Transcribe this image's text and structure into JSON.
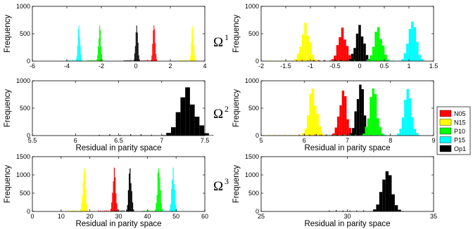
{
  "chart_data": [
    {
      "type": "bar",
      "panel": "top-left",
      "xlabel": "",
      "ylabel": "Frequency",
      "xlim": [
        -6,
        4
      ],
      "ylim": [
        0,
        1000
      ],
      "xticks": [
        "-6",
        "-4",
        "-2",
        "0",
        "2",
        "4"
      ],
      "yticks": [
        "0",
        "500",
        "1000"
      ],
      "peaks": [
        {
          "series": "P15",
          "center": -3.3,
          "height": 650,
          "width": 0.04
        },
        {
          "series": "P10",
          "center": -2.1,
          "height": 650,
          "width": 0.04
        },
        {
          "series": "Op1",
          "center": 0.05,
          "height": 650,
          "width": 0.04
        },
        {
          "series": "N05",
          "center": 1.05,
          "height": 650,
          "width": 0.04
        },
        {
          "series": "N15",
          "center": 3.3,
          "height": 650,
          "width": 0.04
        }
      ]
    },
    {
      "type": "bar",
      "panel": "top-right",
      "xlabel": "",
      "ylabel": "Frequency",
      "xlim": [
        -2,
        1.5
      ],
      "ylim": [
        0,
        1000
      ],
      "xticks": [
        "-2",
        "-1.5",
        "-1",
        "-0.5",
        "0",
        "0.5",
        "1",
        "1.5"
      ],
      "yticks": [
        "0",
        "500",
        "1000"
      ],
      "peaks": [
        {
          "series": "N15",
          "center": -1.1,
          "height": 700,
          "width": 0.05
        },
        {
          "series": "N05",
          "center": -0.35,
          "height": 610,
          "width": 0.05
        },
        {
          "series": "Op1",
          "center": 0.0,
          "height": 660,
          "width": 0.05
        },
        {
          "series": "P10",
          "center": 0.38,
          "height": 620,
          "width": 0.05
        },
        {
          "series": "P15",
          "center": 1.07,
          "height": 720,
          "width": 0.05
        }
      ]
    },
    {
      "type": "bar",
      "panel": "middle-left",
      "xlabel": "Residual in parity space",
      "ylabel": "Frequency",
      "xlim": [
        5.5,
        7.5
      ],
      "ylim": [
        0,
        1000
      ],
      "xticks": [
        "5.5",
        "6",
        "6.5",
        "7",
        "7.5"
      ],
      "yticks": [
        "0",
        "500",
        "1000"
      ],
      "peaks": [
        {
          "series": "Op1",
          "center": 7.3,
          "height": 880,
          "width": 0.055
        }
      ]
    },
    {
      "type": "bar",
      "panel": "middle-right",
      "xlabel": "Residual in parity space",
      "ylabel": "Frequency",
      "xlim": [
        5,
        9
      ],
      "ylim": [
        0,
        1000
      ],
      "xticks": [
        "5",
        "6",
        "7",
        "8",
        "9"
      ],
      "yticks": [
        "0",
        "500",
        "1000"
      ],
      "peaks": [
        {
          "series": "N15",
          "center": 6.2,
          "height": 860,
          "width": 0.055
        },
        {
          "series": "N05",
          "center": 6.9,
          "height": 820,
          "width": 0.055
        },
        {
          "series": "Op1",
          "center": 7.3,
          "height": 930,
          "width": 0.055
        },
        {
          "series": "P10",
          "center": 7.6,
          "height": 860,
          "width": 0.055
        },
        {
          "series": "P15",
          "center": 8.4,
          "height": 850,
          "width": 0.055
        }
      ]
    },
    {
      "type": "bar",
      "panel": "bottom-left",
      "xlabel": "Residual in parity space",
      "ylabel": "Frequency",
      "xlim": [
        0,
        60
      ],
      "ylim": [
        0,
        1500
      ],
      "xticks": [
        "0",
        "10",
        "20",
        "30",
        "40",
        "50",
        "60"
      ],
      "yticks": [
        "0",
        "500",
        "1000",
        "1500"
      ],
      "peaks": [
        {
          "series": "N15",
          "center": 18,
          "height": 1180,
          "width": 0.3
        },
        {
          "series": "N05",
          "center": 28.5,
          "height": 1200,
          "width": 0.3
        },
        {
          "series": "Op1",
          "center": 34,
          "height": 1180,
          "width": 0.3
        },
        {
          "series": "P10",
          "center": 44,
          "height": 1180,
          "width": 0.3
        },
        {
          "series": "P15",
          "center": 49,
          "height": 1200,
          "width": 0.3
        }
      ]
    },
    {
      "type": "bar",
      "panel": "bottom-right",
      "xlabel": "Residual in parity space",
      "ylabel": "Frequency",
      "xlim": [
        25,
        35
      ],
      "ylim": [
        0,
        1500
      ],
      "xticks": [
        "25",
        "30",
        "35"
      ],
      "yticks": [
        "0",
        "500",
        "1000",
        "1500"
      ],
      "peaks": [
        {
          "series": "Op1",
          "center": 32.3,
          "height": 1100,
          "width": 0.18
        }
      ]
    }
  ],
  "row_labels": [
    {
      "base": "Ω",
      "sup": "1"
    },
    {
      "base": "Ω",
      "sup": "2"
    },
    {
      "base": "Ω",
      "sup": "3"
    }
  ],
  "legend": [
    {
      "label": "N05",
      "color": "#ff0000"
    },
    {
      "label": "N15",
      "color": "#ffff00"
    },
    {
      "label": "P10",
      "color": "#00ff00"
    },
    {
      "label": "P15",
      "color": "#00ffff"
    },
    {
      "label": "Op1",
      "color": "#000000"
    }
  ],
  "colors": {
    "N05": "#ff0000",
    "N15": "#ffff00",
    "P10": "#00ff00",
    "P15": "#00ffff",
    "Op1": "#000000"
  },
  "legend_placement": "right",
  "grid": false
}
